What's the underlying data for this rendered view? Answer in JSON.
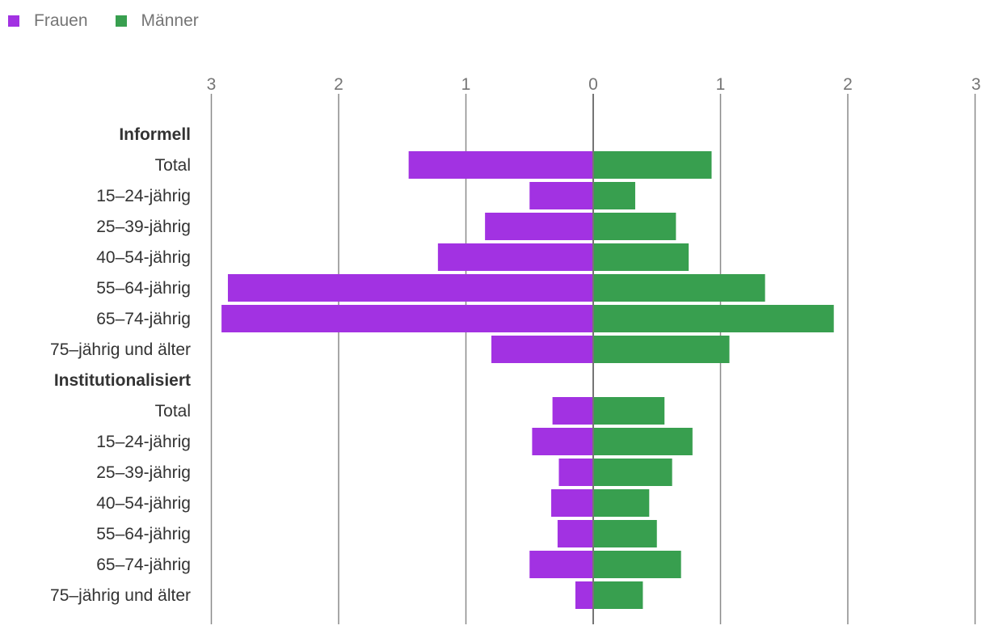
{
  "chart_data": {
    "type": "bar",
    "orientation": "horizontal-diverging",
    "colors": {
      "frauen": "#a232e2",
      "maenner": "#389f4f",
      "grid": "#8a8a8a",
      "axis": "#757575",
      "label": "#333333"
    },
    "series": [
      {
        "name": "Frauen",
        "key": "frauen",
        "side": "left"
      },
      {
        "name": "Männer",
        "key": "maenner",
        "side": "right"
      }
    ],
    "x_ticks": [
      {
        "label": "3",
        "value": -3
      },
      {
        "label": "2",
        "value": -2
      },
      {
        "label": "1",
        "value": -1
      },
      {
        "label": "0",
        "value": 0
      },
      {
        "label": "1",
        "value": 1
      },
      {
        "label": "2",
        "value": 2
      },
      {
        "label": "3",
        "value": 3
      }
    ],
    "xlim": [
      -3,
      3
    ],
    "groups": [
      {
        "name": "Informell",
        "rows": [
          {
            "label": "Total",
            "frauen": 1.45,
            "maenner": 0.93
          },
          {
            "label": "15–24-jährig",
            "frauen": 0.5,
            "maenner": 0.33
          },
          {
            "label": "25–39-jährig",
            "frauen": 0.85,
            "maenner": 0.65
          },
          {
            "label": "40–54-jährig",
            "frauen": 1.22,
            "maenner": 0.75
          },
          {
            "label": "55–64-jährig",
            "frauen": 2.87,
            "maenner": 1.35
          },
          {
            "label": "65–74-jährig",
            "frauen": 2.92,
            "maenner": 1.89
          },
          {
            "label": "75–jährig und älter",
            "frauen": 0.8,
            "maenner": 1.07
          }
        ]
      },
      {
        "name": "Institutionalisiert",
        "rows": [
          {
            "label": "Total",
            "frauen": 0.32,
            "maenner": 0.56
          },
          {
            "label": "15–24-jährig",
            "frauen": 0.48,
            "maenner": 0.78
          },
          {
            "label": "25–39-jährig",
            "frauen": 0.27,
            "maenner": 0.62
          },
          {
            "label": "40–54-jährig",
            "frauen": 0.33,
            "maenner": 0.44
          },
          {
            "label": "55–64-jährig",
            "frauen": 0.28,
            "maenner": 0.5
          },
          {
            "label": "65–74-jährig",
            "frauen": 0.5,
            "maenner": 0.69
          },
          {
            "label": "75–jährig und älter",
            "frauen": 0.14,
            "maenner": 0.39
          }
        ]
      }
    ]
  }
}
